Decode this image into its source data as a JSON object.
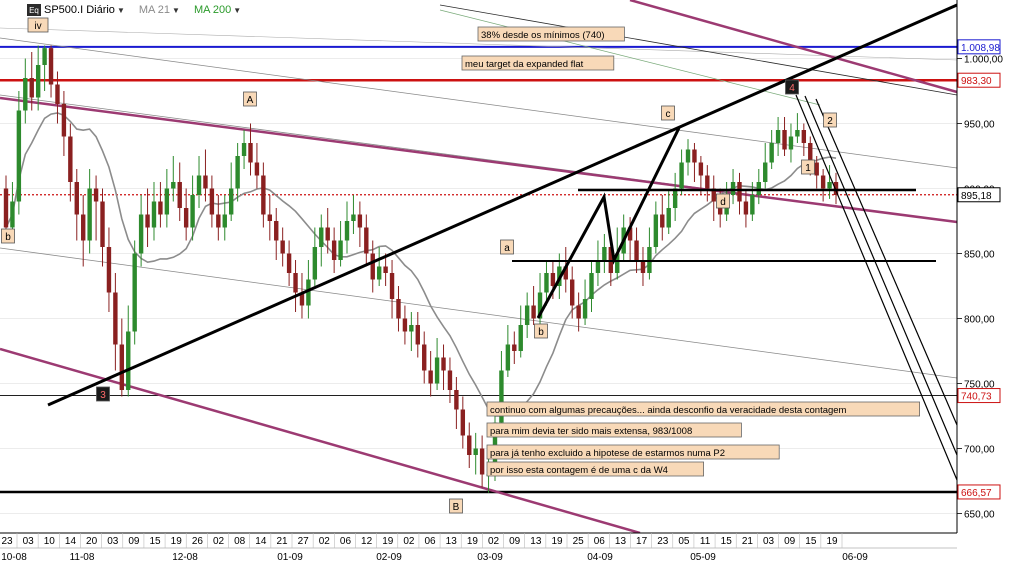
{
  "header": {
    "logo": "Eq",
    "symbol": "SP500.I Diário",
    "ma21": "MA 21",
    "ma200": "MA 200"
  },
  "colors": {
    "up": "#2d8a2d",
    "down": "#8a2020",
    "trendline": "#000000",
    "channel_purple": "#9c3a72",
    "level_blue": "#1a1ad0",
    "level_red": "#cc1111",
    "ma21": "#8c8c8c",
    "ma200": "#7aaa7a",
    "label_bg": "#f8d9b8"
  },
  "chart_data": {
    "type": "candlestick",
    "title": "SP500.I Diário",
    "ylim": [
      635,
      1045
    ],
    "y_ticks": [
      "650,00",
      "700,00",
      "750,00",
      "800,00",
      "850,00",
      "900,00",
      "950,00",
      "1.000,00"
    ],
    "price_tags": [
      {
        "text": "1.008,98",
        "value": 1008.98,
        "color": "#1a1ad0"
      },
      {
        "text": "983,30",
        "value": 983.3,
        "color": "#cc1111"
      },
      {
        "text": "895,18",
        "value": 895.18,
        "color": "#000000"
      },
      {
        "text": "740,73",
        "value": 740.73,
        "color": "#cc1111"
      },
      {
        "text": "666,57",
        "value": 666.57,
        "color": "#cc1111"
      }
    ],
    "horizontal_levels": [
      {
        "value": 1008.98,
        "color": "#1a1ad0",
        "width": 2
      },
      {
        "value": 983.3,
        "color": "#cc1111",
        "width": 2.5
      },
      {
        "value": 895.18,
        "color": "#cc1111",
        "width": 1.2,
        "dotted": true
      },
      {
        "value": 740.73,
        "color": "#000000",
        "width": 0.8
      },
      {
        "value": 666.57,
        "color": "#000000",
        "width": 2.5
      }
    ],
    "x_day_ticks": [
      "23",
      "03",
      "10",
      "14",
      "20",
      "03",
      "09",
      "15",
      "19",
      "26",
      "02",
      "08",
      "14",
      "21",
      "27",
      "02",
      "06",
      "12",
      "19",
      "02",
      "06",
      "13",
      "19",
      "02",
      "09",
      "13",
      "19",
      "25",
      "06",
      "13",
      "17",
      "23",
      "05",
      "11",
      "15",
      "21",
      "03",
      "09",
      "15",
      "19"
    ],
    "x_month_ticks": [
      "10-08",
      "11-08",
      "12-08",
      "01-09",
      "02-09",
      "03-09",
      "04-09",
      "05-09",
      "06-09"
    ],
    "candles": [
      [
        900,
        870,
        910,
        860
      ],
      [
        870,
        890,
        905,
        860
      ],
      [
        890,
        960,
        975,
        880
      ],
      [
        960,
        985,
        1000,
        950
      ],
      [
        985,
        970,
        1005,
        960
      ],
      [
        970,
        995,
        1010,
        960
      ],
      [
        995,
        1008,
        1010,
        975
      ],
      [
        1008,
        980,
        1010,
        970
      ],
      [
        980,
        965,
        990,
        950
      ],
      [
        965,
        940,
        975,
        925
      ],
      [
        940,
        905,
        950,
        890
      ],
      [
        905,
        880,
        915,
        860
      ],
      [
        880,
        860,
        895,
        840
      ],
      [
        860,
        900,
        915,
        850
      ],
      [
        900,
        890,
        910,
        860
      ],
      [
        890,
        855,
        900,
        840
      ],
      [
        855,
        820,
        870,
        805
      ],
      [
        820,
        780,
        835,
        760
      ],
      [
        780,
        745,
        800,
        740
      ],
      [
        745,
        790,
        810,
        740
      ],
      [
        790,
        850,
        860,
        780
      ],
      [
        850,
        880,
        895,
        840
      ],
      [
        880,
        870,
        900,
        855
      ],
      [
        870,
        890,
        905,
        860
      ],
      [
        890,
        880,
        905,
        870
      ],
      [
        880,
        900,
        915,
        870
      ],
      [
        900,
        905,
        925,
        890
      ],
      [
        905,
        885,
        920,
        875
      ],
      [
        885,
        870,
        900,
        860
      ],
      [
        870,
        895,
        910,
        860
      ],
      [
        895,
        910,
        925,
        885
      ],
      [
        910,
        900,
        930,
        890
      ],
      [
        900,
        880,
        910,
        870
      ],
      [
        880,
        870,
        895,
        860
      ],
      [
        870,
        880,
        895,
        860
      ],
      [
        880,
        900,
        920,
        875
      ],
      [
        900,
        925,
        935,
        890
      ],
      [
        925,
        935,
        945,
        915
      ],
      [
        935,
        920,
        950,
        910
      ],
      [
        920,
        910,
        935,
        900
      ],
      [
        910,
        880,
        920,
        870
      ],
      [
        880,
        875,
        895,
        860
      ],
      [
        875,
        860,
        885,
        845
      ],
      [
        860,
        850,
        870,
        840
      ],
      [
        850,
        835,
        860,
        825
      ],
      [
        835,
        820,
        845,
        805
      ],
      [
        820,
        810,
        835,
        800
      ],
      [
        810,
        830,
        845,
        800
      ],
      [
        830,
        855,
        870,
        825
      ],
      [
        855,
        870,
        880,
        840
      ],
      [
        870,
        860,
        885,
        850
      ],
      [
        860,
        845,
        870,
        835
      ],
      [
        845,
        860,
        875,
        840
      ],
      [
        860,
        875,
        890,
        850
      ],
      [
        875,
        880,
        895,
        865
      ],
      [
        880,
        870,
        890,
        855
      ],
      [
        870,
        850,
        880,
        840
      ],
      [
        850,
        830,
        860,
        820
      ],
      [
        830,
        840,
        855,
        825
      ],
      [
        840,
        835,
        850,
        825
      ],
      [
        835,
        815,
        845,
        800
      ],
      [
        815,
        800,
        825,
        790
      ],
      [
        800,
        790,
        810,
        780
      ],
      [
        790,
        795,
        805,
        775
      ],
      [
        795,
        780,
        805,
        770
      ],
      [
        780,
        760,
        790,
        750
      ],
      [
        760,
        750,
        775,
        740
      ],
      [
        750,
        770,
        785,
        745
      ],
      [
        770,
        760,
        780,
        745
      ],
      [
        760,
        745,
        770,
        735
      ],
      [
        745,
        730,
        755,
        715
      ],
      [
        730,
        710,
        740,
        700
      ],
      [
        710,
        695,
        720,
        685
      ],
      [
        695,
        700,
        712,
        680
      ],
      [
        700,
        680,
        710,
        670
      ],
      [
        680,
        680,
        695,
        666
      ],
      [
        680,
        720,
        735,
        675
      ],
      [
        720,
        760,
        775,
        710
      ],
      [
        760,
        780,
        795,
        755
      ],
      [
        780,
        775,
        790,
        765
      ],
      [
        775,
        795,
        810,
        770
      ],
      [
        795,
        810,
        820,
        785
      ],
      [
        810,
        800,
        825,
        795
      ],
      [
        800,
        820,
        835,
        790
      ],
      [
        820,
        835,
        845,
        810
      ],
      [
        835,
        825,
        845,
        815
      ],
      [
        825,
        840,
        850,
        815
      ],
      [
        840,
        830,
        855,
        820
      ],
      [
        830,
        810,
        840,
        800
      ],
      [
        810,
        800,
        820,
        790
      ],
      [
        800,
        815,
        830,
        795
      ],
      [
        815,
        835,
        845,
        805
      ],
      [
        835,
        845,
        860,
        825
      ],
      [
        845,
        855,
        865,
        835
      ],
      [
        855,
        835,
        862,
        825
      ],
      [
        835,
        850,
        870,
        830
      ],
      [
        850,
        870,
        880,
        845
      ],
      [
        870,
        860,
        878,
        845
      ],
      [
        860,
        845,
        870,
        835
      ],
      [
        845,
        835,
        855,
        825
      ],
      [
        835,
        855,
        870,
        830
      ],
      [
        855,
        880,
        890,
        850
      ],
      [
        880,
        870,
        895,
        860
      ],
      [
        870,
        885,
        898,
        865
      ],
      [
        885,
        900,
        912,
        875
      ],
      [
        900,
        920,
        930,
        895
      ],
      [
        920,
        930,
        938,
        910
      ],
      [
        930,
        920,
        935,
        905
      ],
      [
        920,
        910,
        925,
        895
      ],
      [
        910,
        900,
        918,
        890
      ],
      [
        900,
        890,
        910,
        875
      ],
      [
        890,
        880,
        900,
        870
      ],
      [
        880,
        895,
        905,
        875
      ],
      [
        895,
        905,
        915,
        888
      ],
      [
        905,
        890,
        912,
        880
      ],
      [
        890,
        880,
        898,
        870
      ],
      [
        880,
        895,
        905,
        875
      ],
      [
        895,
        905,
        915,
        888
      ],
      [
        905,
        920,
        935,
        900
      ],
      [
        920,
        935,
        945,
        915
      ],
      [
        935,
        945,
        955,
        925
      ],
      [
        945,
        930,
        955,
        925
      ],
      [
        930,
        940,
        950,
        920
      ],
      [
        940,
        945,
        958,
        935
      ],
      [
        945,
        935,
        950,
        925
      ],
      [
        935,
        920,
        940,
        910
      ],
      [
        920,
        910,
        925,
        900
      ],
      [
        910,
        900,
        915,
        890
      ],
      [
        900,
        905,
        918,
        892
      ],
      [
        905,
        895,
        912,
        888
      ]
    ],
    "annotations": [
      {
        "label": "iv",
        "x": 38,
        "y": 25
      },
      {
        "label": "A",
        "x": 250,
        "y": 99
      },
      {
        "label": "b",
        "x": 8,
        "y": 236
      },
      {
        "label": "3",
        "x": 103,
        "y": 394,
        "dark": true
      },
      {
        "label": "B",
        "x": 456,
        "y": 506
      },
      {
        "label": "a",
        "x": 507,
        "y": 247
      },
      {
        "label": "b",
        "x": 541,
        "y": 331
      },
      {
        "label": "c",
        "x": 668,
        "y": 113
      },
      {
        "label": "d",
        "x": 723,
        "y": 201
      },
      {
        "label": "4",
        "x": 792,
        "y": 87,
        "dark": true
      },
      {
        "label": "2",
        "x": 830,
        "y": 120
      },
      {
        "label": "1",
        "x": 808,
        "y": 167
      }
    ],
    "notes": [
      {
        "text": "38% desde os mínimos (740)",
        "x": 478,
        "y": 34
      },
      {
        "text": "meu target da expanded flat",
        "x": 462,
        "y": 63
      },
      {
        "text": "continuo com algumas precauções... ainda desconfio da veracidade desta contagem",
        "x": 487,
        "y": 409
      },
      {
        "text": "para mim devia ter sido mais extensa, 983/1008",
        "x": 487,
        "y": 430
      },
      {
        "text": "para já tenho excluido a hipotese de estarmos numa P2",
        "x": 487,
        "y": 452
      },
      {
        "text": "por isso esta contagem é de uma c da W4",
        "x": 487,
        "y": 469
      }
    ]
  }
}
